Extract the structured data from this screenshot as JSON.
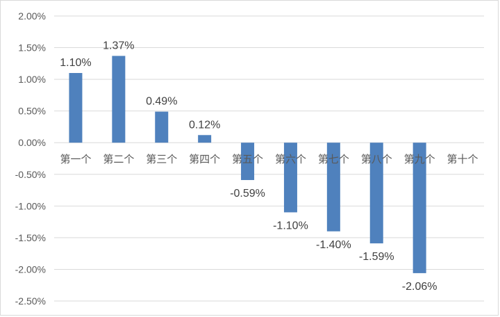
{
  "chart_data": {
    "type": "bar",
    "categories": [
      "第一个",
      "第二个",
      "第三个",
      "第四个",
      "第五个",
      "第六个",
      "第七个",
      "第八个",
      "第九个",
      "第十个"
    ],
    "values": [
      1.1,
      1.37,
      0.49,
      0.12,
      -0.59,
      -1.1,
      -1.4,
      -1.59,
      -2.06,
      null
    ],
    "data_labels": [
      "1.10%",
      "1.37%",
      "0.49%",
      "0.12%",
      "-0.59%",
      "-1.10%",
      "-1.40%",
      "-1.59%",
      "-2.06%",
      ""
    ],
    "yticks": [
      "2.00%",
      "1.50%",
      "1.00%",
      "0.50%",
      "0.00%",
      "-0.50%",
      "-1.00%",
      "-1.50%",
      "-2.00%",
      "-2.50%"
    ],
    "ylim": [
      -2.5,
      2.0
    ],
    "grid": true,
    "bar_color": "#4f81bd",
    "title": "",
    "xlabel": "",
    "ylabel": ""
  }
}
